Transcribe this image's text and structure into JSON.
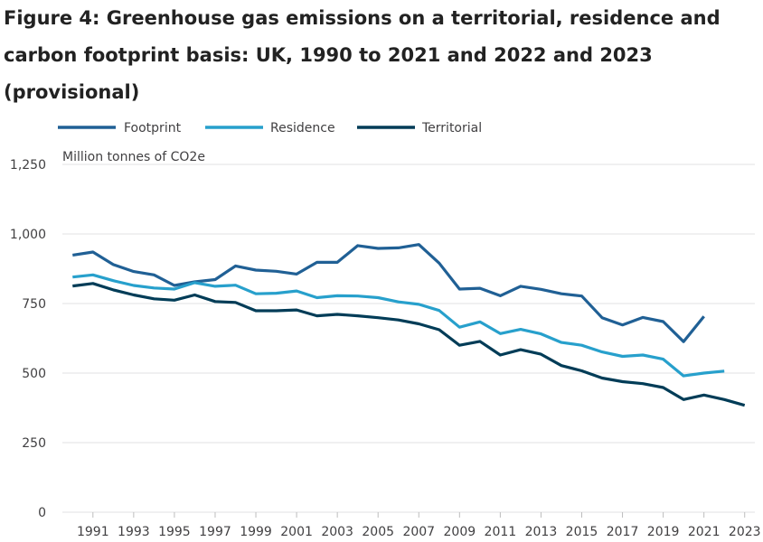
{
  "chart_data": {
    "type": "line",
    "title": "Figure 4: Greenhouse gas emissions on a territorial, residence and carbon footprint basis: UK, 1990 to 2021 and 2022 and 2023 (provisional)",
    "ylabel": "Million tonnes of CO2e",
    "xlabel": "",
    "ylim": [
      0,
      1250
    ],
    "yticks": [
      0,
      250,
      500,
      750,
      1000,
      1250
    ],
    "ytick_labels": [
      "0",
      "250",
      "500",
      "750",
      "1,000",
      "1,250"
    ],
    "xticks": [
      1991,
      1993,
      1995,
      1997,
      1999,
      2001,
      2003,
      2005,
      2007,
      2009,
      2011,
      2013,
      2015,
      2017,
      2019,
      2021,
      2023
    ],
    "xtick_labels": [
      "1991",
      "1993",
      "1995",
      "1997",
      "1999",
      "2001",
      "2003",
      "2005",
      "2007",
      "2009",
      "2011",
      "2013",
      "2015",
      "2017",
      "2019",
      "2021",
      "2023"
    ],
    "xlim": [
      1989.5,
      2023.5
    ],
    "grid": true,
    "legend_position": "top-left",
    "series": [
      {
        "name": "Footprint",
        "color": "#206095",
        "x": [
          1990,
          1991,
          1992,
          1993,
          1994,
          1995,
          1996,
          1997,
          1998,
          1999,
          2000,
          2001,
          2002,
          2003,
          2004,
          2005,
          2006,
          2007,
          2008,
          2009,
          2010,
          2011,
          2012,
          2013,
          2014,
          2015,
          2016,
          2017,
          2018,
          2019,
          2020,
          2021
        ],
        "values": [
          924,
          935,
          890,
          865,
          853,
          815,
          828,
          836,
          885,
          870,
          866,
          856,
          898,
          898,
          958,
          948,
          950,
          962,
          895,
          802,
          805,
          778,
          812,
          801,
          785,
          777,
          699,
          673,
          700,
          685,
          613,
          704
        ]
      },
      {
        "name": "Residence",
        "color": "#27a0cc",
        "x": [
          1990,
          1991,
          1992,
          1993,
          1994,
          1995,
          1996,
          1997,
          1998,
          1999,
          2000,
          2001,
          2002,
          2003,
          2004,
          2005,
          2006,
          2007,
          2008,
          2009,
          2010,
          2011,
          2012,
          2013,
          2014,
          2015,
          2016,
          2017,
          2018,
          2019,
          2020,
          2021,
          2022
        ],
        "values": [
          845,
          853,
          832,
          815,
          806,
          802,
          825,
          812,
          816,
          785,
          787,
          795,
          771,
          778,
          777,
          771,
          756,
          747,
          725,
          665,
          684,
          642,
          657,
          641,
          610,
          600,
          576,
          560,
          565,
          550,
          490,
          500,
          507
        ]
      },
      {
        "name": "Territorial",
        "color": "#003c57",
        "x": [
          1990,
          1991,
          1992,
          1993,
          1994,
          1995,
          1996,
          1997,
          1998,
          1999,
          2000,
          2001,
          2002,
          2003,
          2004,
          2005,
          2006,
          2007,
          2008,
          2009,
          2010,
          2011,
          2012,
          2013,
          2014,
          2015,
          2016,
          2017,
          2018,
          2019,
          2020,
          2021,
          2022,
          2023
        ],
        "values": [
          813,
          822,
          799,
          781,
          767,
          762,
          781,
          757,
          754,
          724,
          724,
          727,
          706,
          711,
          706,
          699,
          691,
          677,
          656,
          600,
          614,
          565,
          584,
          568,
          527,
          508,
          482,
          469,
          462,
          448,
          405,
          421,
          405,
          384
        ]
      }
    ]
  }
}
